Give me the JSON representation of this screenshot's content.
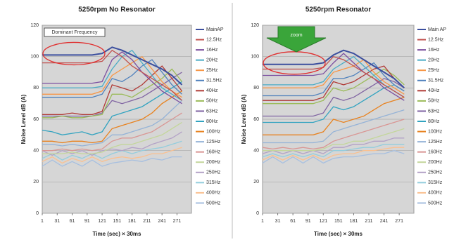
{
  "chart_data": [
    {
      "type": "line",
      "title": "5250rpm  No Resonator",
      "x_label": "Time (sec) × 30ms",
      "y_label": "Noise Level dB (A)",
      "annotation": "Dominant Frequency",
      "x": [
        1,
        21,
        41,
        61,
        81,
        101,
        121,
        141,
        161,
        181,
        201,
        221,
        241,
        261,
        281
      ],
      "xlim": [
        1,
        300
      ],
      "xticks": [
        1,
        31,
        61,
        91,
        121,
        151,
        181,
        211,
        241,
        271
      ],
      "ylim": [
        0,
        120
      ],
      "yticks": [
        0,
        20,
        40,
        60,
        80,
        100,
        120
      ],
      "grid": true,
      "legend": "right",
      "series": [
        {
          "name": "MainAP",
          "color": "#3c4f9e",
          "values": [
            101,
            101,
            101,
            101,
            101,
            101,
            102,
            106,
            104,
            101,
            98,
            95,
            92,
            88,
            82
          ]
        },
        {
          "name": "12.5Hz",
          "color": "#c0504d",
          "values": [
            96,
            96,
            96,
            96,
            96,
            96,
            97,
            104,
            100,
            94,
            90,
            86,
            82,
            78,
            72
          ]
        },
        {
          "name": "16Hz",
          "color": "#7b4fa0",
          "values": [
            83,
            83,
            83,
            83,
            83,
            83,
            84,
            98,
            103,
            98,
            90,
            84,
            78,
            74,
            70
          ]
        },
        {
          "name": "20Hz",
          "color": "#4bacc6",
          "values": [
            80,
            80,
            80,
            80,
            80,
            80,
            81,
            92,
            100,
            104,
            96,
            88,
            80,
            76,
            72
          ]
        },
        {
          "name": "25Hz",
          "color": "#f79646",
          "values": [
            76,
            76,
            76,
            76,
            76,
            76,
            78,
            88,
            92,
            96,
            100,
            92,
            84,
            78,
            74
          ]
        },
        {
          "name": "31.5Hz",
          "color": "#4f81bd",
          "values": [
            74,
            74,
            74,
            74,
            74,
            74,
            76,
            86,
            84,
            88,
            94,
            98,
            90,
            82,
            76
          ]
        },
        {
          "name": "40Hz",
          "color": "#b03a36",
          "values": [
            63,
            63,
            63,
            64,
            63,
            63,
            65,
            82,
            80,
            78,
            82,
            88,
            94,
            86,
            78
          ]
        },
        {
          "name": "50Hz",
          "color": "#9bbb59",
          "values": [
            61,
            61,
            62,
            61,
            61,
            62,
            63,
            76,
            76,
            74,
            78,
            82,
            86,
            92,
            84
          ]
        },
        {
          "name": "63Hz",
          "color": "#8064a2",
          "values": [
            62,
            62,
            62,
            62,
            62,
            62,
            64,
            72,
            70,
            72,
            74,
            78,
            82,
            86,
            90
          ]
        },
        {
          "name": "80Hz",
          "color": "#31a3c0",
          "values": [
            53,
            52,
            50,
            51,
            52,
            50,
            52,
            62,
            64,
            66,
            68,
            72,
            76,
            80,
            84
          ]
        },
        {
          "name": "100Hz",
          "color": "#e8821f",
          "values": [
            46,
            46,
            45,
            46,
            46,
            45,
            46,
            54,
            56,
            58,
            60,
            64,
            70,
            74,
            78
          ]
        },
        {
          "name": "125Hz",
          "color": "#95b3d7",
          "values": [
            44,
            44,
            43,
            44,
            43,
            44,
            45,
            50,
            50,
            52,
            54,
            56,
            60,
            66,
            72
          ]
        },
        {
          "name": "160Hz",
          "color": "#d99694",
          "values": [
            40,
            40,
            41,
            40,
            41,
            40,
            41,
            46,
            48,
            48,
            50,
            52,
            56,
            60,
            64
          ]
        },
        {
          "name": "200Hz",
          "color": "#c3d69b",
          "values": [
            38,
            38,
            38,
            39,
            38,
            38,
            39,
            42,
            44,
            44,
            46,
            48,
            50,
            54,
            58
          ]
        },
        {
          "name": "250Hz",
          "color": "#b3a2c7",
          "values": [
            40,
            37,
            40,
            38,
            40,
            37,
            40,
            41,
            40,
            42,
            41,
            44,
            46,
            48,
            52
          ]
        },
        {
          "name": "315Hz",
          "color": "#93cddd",
          "values": [
            35,
            38,
            34,
            37,
            35,
            38,
            35,
            38,
            40,
            38,
            40,
            41,
            42,
            44,
            46
          ]
        },
        {
          "name": "400Hz",
          "color": "#fac090",
          "values": [
            33,
            36,
            32,
            35,
            33,
            36,
            33,
            35,
            36,
            35,
            36,
            38,
            38,
            40,
            42
          ]
        },
        {
          "name": "500Hz",
          "color": "#a6bfe0",
          "values": [
            30,
            34,
            30,
            33,
            30,
            34,
            30,
            32,
            33,
            34,
            33,
            35,
            34,
            36,
            36
          ]
        }
      ]
    },
    {
      "type": "line",
      "title": "5250rpm  Resonator",
      "x_label": "Time (sec) × 30ms",
      "y_label": "Noise Level dB (A)",
      "annotation": "zoom",
      "x": [
        1,
        21,
        41,
        61,
        81,
        101,
        121,
        141,
        161,
        181,
        201,
        221,
        241,
        261,
        281
      ],
      "xlim": [
        1,
        300
      ],
      "xticks": [
        1,
        31,
        61,
        91,
        121,
        151,
        181,
        211,
        241,
        271
      ],
      "ylim": [
        0,
        120
      ],
      "yticks": [
        0,
        20,
        40,
        60,
        80,
        100,
        120
      ],
      "grid": true,
      "legend": "right",
      "series": [
        {
          "name": "Main AP",
          "color": "#3c4f9e",
          "values": [
            95,
            95,
            95,
            95,
            95,
            95,
            96,
            101,
            104,
            102,
            98,
            94,
            90,
            86,
            80
          ]
        },
        {
          "name": "12.5Hz",
          "color": "#c0504d",
          "values": [
            92,
            92,
            92,
            92,
            92,
            92,
            93,
            100,
            98,
            94,
            90,
            86,
            82,
            78,
            74
          ]
        },
        {
          "name": "16Hz",
          "color": "#7b4fa0",
          "values": [
            88,
            88,
            88,
            88,
            88,
            88,
            89,
            96,
            102,
            96,
            90,
            86,
            80,
            76,
            72
          ]
        },
        {
          "name": "20Hz",
          "color": "#4bacc6",
          "values": [
            82,
            82,
            82,
            82,
            82,
            82,
            84,
            92,
            96,
            100,
            94,
            88,
            82,
            78,
            74
          ]
        },
        {
          "name": "25Hz",
          "color": "#f79646",
          "values": [
            80,
            80,
            80,
            80,
            80,
            80,
            82,
            90,
            92,
            94,
            98,
            90,
            84,
            80,
            76
          ]
        },
        {
          "name": "31.5Hz",
          "color": "#4f81bd",
          "values": [
            75,
            75,
            75,
            75,
            75,
            75,
            77,
            86,
            86,
            88,
            92,
            96,
            88,
            82,
            78
          ]
        },
        {
          "name": "40Hz",
          "color": "#b03a36",
          "values": [
            72,
            72,
            72,
            72,
            72,
            72,
            74,
            84,
            82,
            84,
            88,
            92,
            94,
            86,
            80
          ]
        },
        {
          "name": "50Hz",
          "color": "#9bbb59",
          "values": [
            70,
            70,
            70,
            70,
            70,
            70,
            72,
            80,
            78,
            80,
            84,
            88,
            92,
            88,
            82
          ]
        },
        {
          "name": "63Hz",
          "color": "#8064a2",
          "values": [
            62,
            62,
            62,
            62,
            62,
            62,
            64,
            74,
            72,
            74,
            78,
            82,
            86,
            84,
            80
          ]
        },
        {
          "name": "80Hz",
          "color": "#31a3c0",
          "values": [
            58,
            58,
            58,
            58,
            58,
            58,
            60,
            68,
            66,
            68,
            72,
            76,
            80,
            82,
            78
          ]
        },
        {
          "name": "100Hz",
          "color": "#e8821f",
          "values": [
            50,
            50,
            50,
            50,
            50,
            50,
            52,
            60,
            58,
            60,
            62,
            66,
            70,
            72,
            74
          ]
        },
        {
          "name": "125Hz",
          "color": "#95b3d7",
          "values": [
            45,
            45,
            45,
            45,
            45,
            45,
            46,
            52,
            54,
            56,
            58,
            60,
            62,
            64,
            66
          ]
        },
        {
          "name": "160Hz",
          "color": "#d99694",
          "values": [
            42,
            41,
            42,
            41,
            42,
            41,
            42,
            46,
            48,
            50,
            52,
            54,
            56,
            58,
            60
          ]
        },
        {
          "name": "200Hz",
          "color": "#c3d69b",
          "values": [
            40,
            40,
            40,
            40,
            40,
            40,
            41,
            44,
            44,
            46,
            46,
            48,
            50,
            52,
            54
          ]
        },
        {
          "name": "250Hz",
          "color": "#b3a2c7",
          "values": [
            38,
            40,
            38,
            40,
            38,
            40,
            38,
            42,
            42,
            44,
            44,
            46,
            46,
            48,
            48
          ]
        },
        {
          "name": "315Hz",
          "color": "#93cddd",
          "values": [
            36,
            38,
            36,
            38,
            36,
            38,
            36,
            40,
            40,
            41,
            42,
            42,
            44,
            44,
            44
          ]
        },
        {
          "name": "400Hz",
          "color": "#fac090",
          "values": [
            34,
            37,
            34,
            37,
            34,
            37,
            34,
            37,
            38,
            38,
            40,
            40,
            41,
            42,
            42
          ]
        },
        {
          "name": "500Hz",
          "color": "#a6bfe0",
          "values": [
            32,
            36,
            32,
            36,
            32,
            36,
            32,
            35,
            36,
            36,
            37,
            38,
            38,
            40,
            38
          ]
        }
      ]
    }
  ]
}
